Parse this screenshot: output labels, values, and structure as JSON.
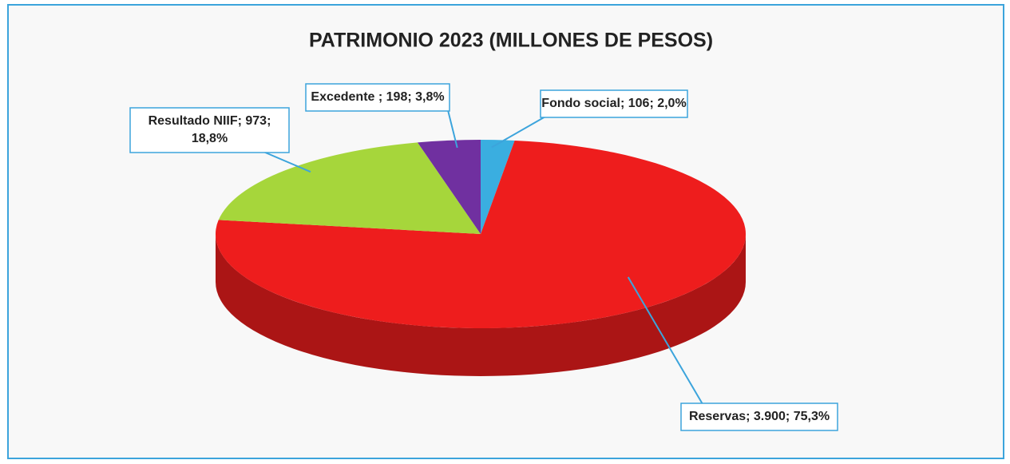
{
  "chart_data": {
    "type": "pie3d",
    "title": "PATRIMONIO 2023 (MILLONES DE PESOS)",
    "categories": [
      "Fondo social",
      "Reservas",
      "Resultado NIIF",
      "Excedente"
    ],
    "values": [
      106,
      3900,
      973,
      198
    ],
    "colors": [
      "#3aaee0",
      "#ee1d1d",
      "#a6d63b",
      "#7030a0"
    ],
    "value_labels": [
      [
        "Fondo social; 106; 2,0%"
      ],
      [
        "Reservas; 3.900; 75,3%"
      ],
      [
        "Resultado NIIF; 973;",
        "18,8%"
      ],
      [
        "Excedente ; 198; 3,8%"
      ]
    ]
  }
}
